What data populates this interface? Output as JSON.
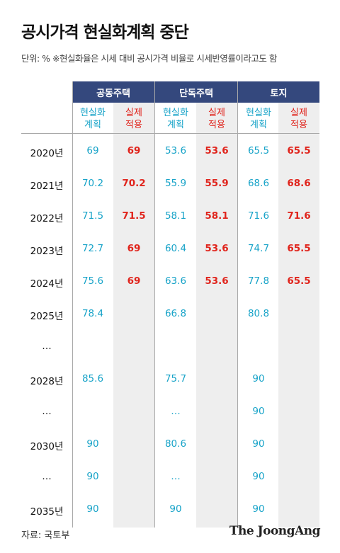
{
  "title": "공시가격 현실화계획 중단",
  "unit_note": "단위: %  ※현실화율은 시세 대비 공시가격 비율로 시세반영률이라고도 함",
  "source": "자료: 국토부",
  "logo": "The JoongAng",
  "colors": {
    "header_bg": "#34487d",
    "plan": "#17a3c8",
    "actual": "#e0241c",
    "shade": "#eeeeee"
  },
  "chart_data": {
    "type": "table",
    "groups": [
      "공동주택",
      "단독주택",
      "토지"
    ],
    "subcolumns": [
      {
        "line1": "현실화",
        "line2": "계획"
      },
      {
        "line1": "실제",
        "line2": "적용"
      }
    ],
    "rows": [
      {
        "year": "2020년",
        "values": [
          "69",
          "69",
          "53.6",
          "53.6",
          "65.5",
          "65.5"
        ]
      },
      {
        "year": "2021년",
        "values": [
          "70.2",
          "70.2",
          "55.9",
          "55.9",
          "68.6",
          "68.6"
        ]
      },
      {
        "year": "2022년",
        "values": [
          "71.5",
          "71.5",
          "58.1",
          "58.1",
          "71.6",
          "71.6"
        ]
      },
      {
        "year": "2023년",
        "values": [
          "72.7",
          "69",
          "60.4",
          "53.6",
          "74.7",
          "65.5"
        ]
      },
      {
        "year": "2024년",
        "values": [
          "75.6",
          "69",
          "63.6",
          "53.6",
          "77.8",
          "65.5"
        ]
      },
      {
        "year": "2025년",
        "values": [
          "78.4",
          "",
          "66.8",
          "",
          "80.8",
          ""
        ]
      },
      {
        "year": "…",
        "values": [
          "",
          "",
          "",
          "",
          "",
          ""
        ]
      },
      {
        "year": "2028년",
        "values": [
          "85.6",
          "",
          "75.7",
          "",
          "90",
          ""
        ]
      },
      {
        "year": "…",
        "values": [
          "",
          "",
          "…",
          "",
          "90",
          ""
        ]
      },
      {
        "year": "2030년",
        "values": [
          "90",
          "",
          "80.6",
          "",
          "90",
          ""
        ]
      },
      {
        "year": "…",
        "values": [
          "90",
          "",
          "…",
          "",
          "90",
          ""
        ]
      },
      {
        "year": "2035년",
        "values": [
          "90",
          "",
          "90",
          "",
          "90",
          ""
        ]
      }
    ]
  }
}
